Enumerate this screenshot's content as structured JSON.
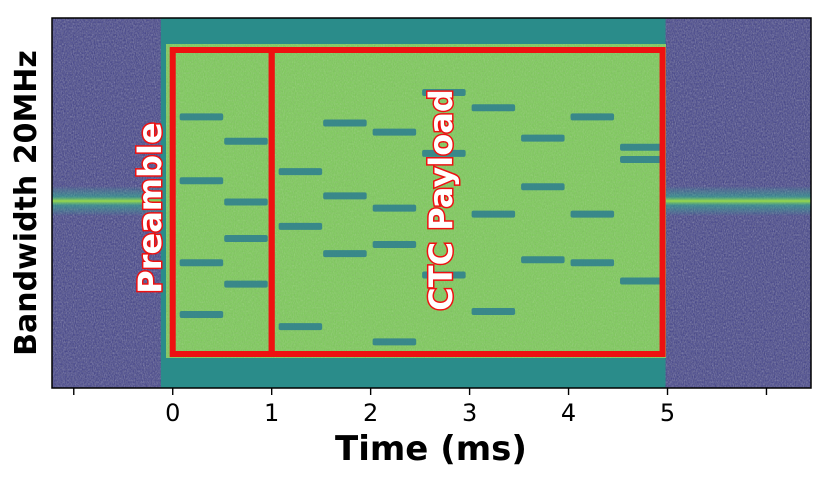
{
  "chart_data": {
    "type": "heatmap",
    "title": "",
    "xlabel": "Time (ms)",
    "ylabel": "Bandwidth 20MHz",
    "x_ticks": [
      0,
      1,
      2,
      3,
      4,
      5
    ],
    "x_tick_labels": [
      "0",
      "1",
      "2",
      "3",
      "4",
      "5"
    ],
    "xlim": [
      -1.22,
      6.45
    ],
    "signal_span_ms": [
      -0.12,
      4.98
    ],
    "colormap": "viridis",
    "annotations": [
      {
        "label": "Preamble",
        "x_range_ms": [
          0.0,
          1.0
        ]
      },
      {
        "label": "CTC Payload",
        "x_range_ms": [
          1.0,
          4.95
        ]
      }
    ],
    "symbol_marks": [
      {
        "t": 0.05,
        "f": 0.78
      },
      {
        "t": 0.5,
        "f": 0.7
      },
      {
        "t": 0.05,
        "f": 0.57
      },
      {
        "t": 0.5,
        "f": 0.5
      },
      {
        "t": 0.5,
        "f": 0.38
      },
      {
        "t": 0.05,
        "f": 0.3
      },
      {
        "t": 0.5,
        "f": 0.23
      },
      {
        "t": 0.05,
        "f": 0.13
      },
      {
        "t": 1.05,
        "f": 0.09
      },
      {
        "t": 1.05,
        "f": 0.6
      },
      {
        "t": 1.05,
        "f": 0.42
      },
      {
        "t": 1.5,
        "f": 0.76
      },
      {
        "t": 1.5,
        "f": 0.52
      },
      {
        "t": 1.5,
        "f": 0.33
      },
      {
        "t": 2.0,
        "f": 0.73
      },
      {
        "t": 2.0,
        "f": 0.48
      },
      {
        "t": 2.0,
        "f": 0.36
      },
      {
        "t": 2.0,
        "f": 0.04
      },
      {
        "t": 2.5,
        "f": 0.86
      },
      {
        "t": 2.5,
        "f": 0.66
      },
      {
        "t": 2.5,
        "f": 0.26
      },
      {
        "t": 3.0,
        "f": 0.81
      },
      {
        "t": 3.0,
        "f": 0.46
      },
      {
        "t": 3.0,
        "f": 0.14
      },
      {
        "t": 3.5,
        "f": 0.71
      },
      {
        "t": 3.5,
        "f": 0.55
      },
      {
        "t": 3.5,
        "f": 0.31
      },
      {
        "t": 4.0,
        "f": 0.78
      },
      {
        "t": 4.0,
        "f": 0.46
      },
      {
        "t": 4.0,
        "f": 0.3
      },
      {
        "t": 4.5,
        "f": 0.68
      },
      {
        "t": 4.5,
        "f": 0.64
      },
      {
        "t": 4.5,
        "f": 0.24
      }
    ],
    "box_color": "#ee1111"
  }
}
